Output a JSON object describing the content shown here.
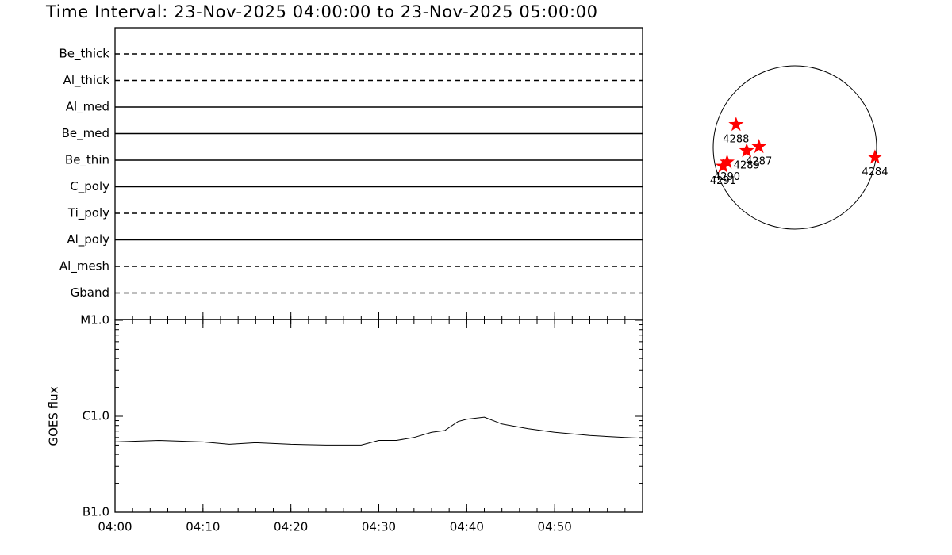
{
  "title": "Time Interval: 23-Nov-2025 04:00:00 to 23-Nov-2025 05:00:00",
  "filters": [
    {
      "name": "Be_thick",
      "line": "dashed"
    },
    {
      "name": "Al_thick",
      "line": "dashed"
    },
    {
      "name": "Al_med",
      "line": "solid"
    },
    {
      "name": "Be_med",
      "line": "solid"
    },
    {
      "name": "Be_thin",
      "line": "solid"
    },
    {
      "name": "C_poly",
      "line": "solid"
    },
    {
      "name": "Ti_poly",
      "line": "dashed"
    },
    {
      "name": "Al_poly",
      "line": "solid"
    },
    {
      "name": "Al_mesh",
      "line": "dashed"
    },
    {
      "name": "Gband",
      "line": "dashed"
    }
  ],
  "chart_data": [
    {
      "type": "line",
      "ylabel": "GOES flux",
      "log": true,
      "color": "#000000",
      "x": [
        0,
        5,
        10,
        13,
        16,
        20,
        24,
        28,
        30,
        32,
        34,
        36,
        37.5,
        39,
        40,
        42,
        44,
        47,
        50,
        54,
        58,
        60
      ],
      "values": [
        5.4e-07,
        5.6e-07,
        5.4e-07,
        5.1e-07,
        5.3e-07,
        5.1e-07,
        5e-07,
        5e-07,
        5.6e-07,
        5.6e-07,
        6e-07,
        6.8e-07,
        7.1e-07,
        8.8e-07,
        9.3e-07,
        9.8e-07,
        8.3e-07,
        7.4e-07,
        6.8e-07,
        6.3e-07,
        6e-07,
        5.9e-07
      ],
      "xlim": [
        0,
        60
      ],
      "xticks": [
        {
          "value": 0,
          "label": "04:00"
        },
        {
          "value": 10,
          "label": "04:10"
        },
        {
          "value": 20,
          "label": "04:20"
        },
        {
          "value": 30,
          "label": "04:30"
        },
        {
          "value": 40,
          "label": "04:40"
        },
        {
          "value": 50,
          "label": "04:50"
        }
      ],
      "ylim": [
        1e-07,
        1e-05
      ],
      "yticks": [
        {
          "value": 1e-05,
          "label": "M1.0"
        },
        {
          "value": 1e-06,
          "label": "C1.0"
        },
        {
          "value": 1e-07,
          "label": "B1.0"
        }
      ]
    },
    {
      "type": "scatter",
      "color": "#ff0000",
      "xlim": [
        -1,
        1
      ],
      "ylim": [
        -1,
        1
      ],
      "labels": [
        "4288",
        "4287",
        "4289",
        "4290",
        "4291",
        "4284"
      ],
      "x": [
        -0.72,
        -0.44,
        -0.59,
        -0.83,
        -0.88,
        0.98
      ],
      "y": [
        0.28,
        0.01,
        -0.04,
        -0.18,
        -0.23,
        -0.12
      ]
    }
  ]
}
